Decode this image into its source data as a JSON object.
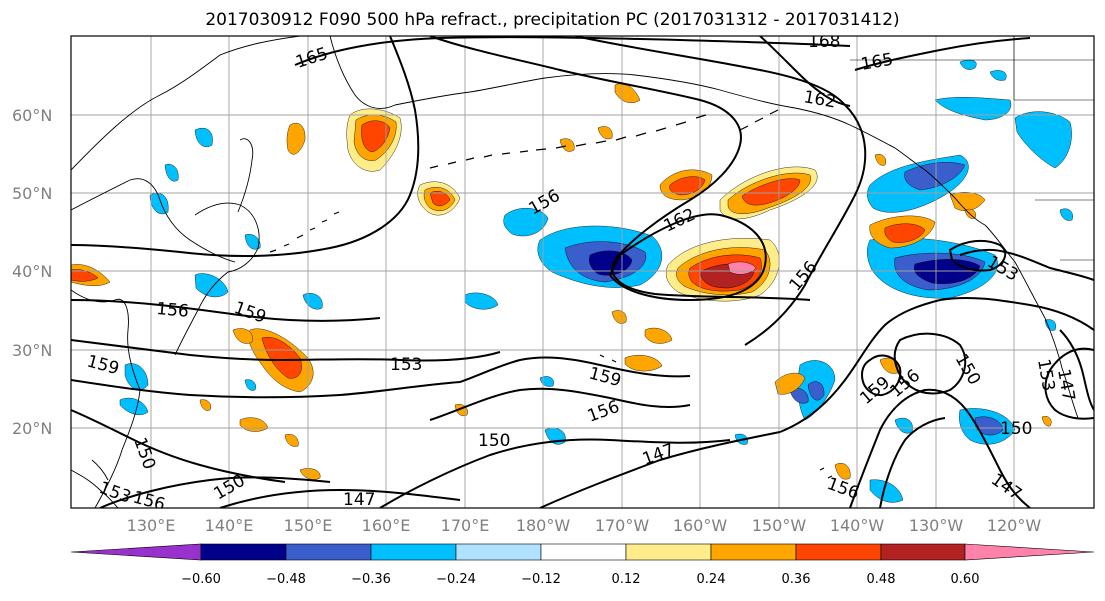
{
  "title": "2017030912 F090 500 hPa refract., precipitation PC (2017031312 - 2017031412)",
  "map": {
    "lat_ticks": [
      "60°N",
      "50°N",
      "40°N",
      "30°N",
      "20°N"
    ],
    "lon_ticks": [
      "130°E",
      "140°E",
      "150°E",
      "160°E",
      "170°E",
      "180°W",
      "170°W",
      "160°W",
      "150°W",
      "140°W",
      "130°W",
      "120°W"
    ],
    "contour_labels": [
      "165",
      "168",
      "165",
      "162",
      "156",
      "162",
      "156",
      "153",
      "156",
      "159",
      "159",
      "153",
      "159",
      "156",
      "150",
      "150",
      "147",
      "150",
      "147",
      "159",
      "156",
      "150",
      "147",
      "153",
      "153",
      "156",
      "156",
      "150",
      "147"
    ]
  },
  "colorbar": {
    "ticks": [
      "−0.60",
      "−0.48",
      "−0.36",
      "−0.24",
      "−0.12",
      "0.12",
      "0.24",
      "0.36",
      "0.48",
      "0.60"
    ],
    "colors": [
      "#9932cc",
      "#00008b",
      "#3a5fcd",
      "#00bfff",
      "#b0e2ff",
      "#ffffff",
      "#ffec8b",
      "#ffa500",
      "#ff4500",
      "#b22222",
      "#ff82ab"
    ]
  }
}
